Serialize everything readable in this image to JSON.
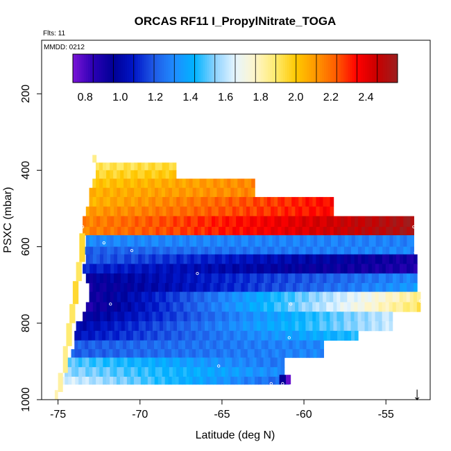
{
  "chart_data": {
    "type": "heatmap",
    "title": "ORCAS RF11 I_PropylNitrate_TOGA",
    "flights_label": "Flts: 11",
    "date_label": "MMDD: 0212",
    "xlabel": "Latitude (deg N)",
    "ylabel": "PSXC (mbar)",
    "xlim": [
      -76.0,
      -52.3
    ],
    "ylim": [
      1000,
      60
    ],
    "x_ticks": [
      -75,
      -70,
      -65,
      -60,
      -55
    ],
    "x_tick_labels": [
      "-75",
      "-70",
      "-65",
      "-60",
      "-55"
    ],
    "y_ticks": [
      200,
      400,
      600,
      800,
      1000
    ],
    "y_tick_labels": [
      "200",
      "400",
      "600",
      "800",
      "1000"
    ],
    "colorbar": {
      "min": 0.73,
      "max": 2.58,
      "ticks": [
        0.8,
        1.0,
        1.2,
        1.4,
        1.6,
        1.8,
        2.0,
        2.2,
        2.4
      ],
      "tick_labels": [
        "0.8",
        "1.0",
        "1.2",
        "1.4",
        "1.6",
        "1.8",
        "2.0",
        "2.2",
        "2.4"
      ]
    },
    "arrow_symbol": "↓",
    "arrow_latitude": -53.1,
    "bands": [
      {
        "p_top": 380,
        "p_bottom": 400,
        "lat_start": -72.7,
        "lat_end": -67.8,
        "v_start": 1.9,
        "v_end": 1.95
      },
      {
        "p_top": 400,
        "p_bottom": 422,
        "lat_start": -72.7,
        "lat_end": -67.8,
        "v_start": 1.95,
        "v_end": 2.0
      },
      {
        "p_top": 422,
        "p_bottom": 446,
        "lat_start": -72.9,
        "lat_end": -63.0,
        "v_start": 2.0,
        "v_end": 2.15
      },
      {
        "p_top": 446,
        "p_bottom": 470,
        "lat_start": -73.1,
        "lat_end": -63.0,
        "v_start": 2.05,
        "v_end": 2.15
      },
      {
        "p_top": 470,
        "p_bottom": 495,
        "lat_start": -73.1,
        "lat_end": -58.2,
        "v_start": 2.05,
        "v_end": 2.35
      },
      {
        "p_top": 495,
        "p_bottom": 520,
        "lat_start": -73.3,
        "lat_end": -58.2,
        "v_start": 2.1,
        "v_end": 2.35
      },
      {
        "p_top": 520,
        "p_bottom": 548,
        "lat_start": -73.5,
        "lat_end": -53.3,
        "v_start": 2.15,
        "v_end": 2.55
      },
      {
        "p_top": 548,
        "p_bottom": 570,
        "lat_start": -73.5,
        "lat_end": -53.3,
        "v_start": 2.15,
        "v_end": 2.55
      },
      {
        "p_top": 570,
        "p_bottom": 600,
        "lat_start": -73.3,
        "lat_end": -53.3,
        "v_start": 1.3,
        "v_end": 1.28
      },
      {
        "p_top": 600,
        "p_bottom": 620,
        "lat_start": -73.5,
        "lat_end": -53.3,
        "v_start": 1.2,
        "v_end": 1.3
      },
      {
        "p_top": 620,
        "p_bottom": 645,
        "lat_start": -73.3,
        "lat_end": -53.1,
        "v_start": 1.2,
        "v_end": 0.9
      },
      {
        "p_top": 645,
        "p_bottom": 670,
        "lat_start": -73.5,
        "lat_end": -53.1,
        "v_start": 1.1,
        "v_end": 0.88
      },
      {
        "p_top": 670,
        "p_bottom": 695,
        "lat_start": -73.3,
        "lat_end": -53.1,
        "v_start": 0.95,
        "v_end": 1.3
      },
      {
        "p_top": 695,
        "p_bottom": 718,
        "lat_start": -73.1,
        "lat_end": -53.1,
        "v_start": 0.92,
        "v_end": 1.35
      },
      {
        "p_top": 718,
        "p_bottom": 745,
        "lat_start": -73.1,
        "lat_end": -52.9,
        "v_start": 0.9,
        "v_end": 1.85
      },
      {
        "p_top": 745,
        "p_bottom": 770,
        "lat_start": -73.3,
        "lat_end": -52.9,
        "v_start": 0.88,
        "v_end": 1.9
      },
      {
        "p_top": 770,
        "p_bottom": 795,
        "lat_start": -73.5,
        "lat_end": -54.6,
        "v_start": 0.95,
        "v_end": 1.62
      },
      {
        "p_top": 795,
        "p_bottom": 820,
        "lat_start": -73.9,
        "lat_end": -54.6,
        "v_start": 1.0,
        "v_end": 1.62
      },
      {
        "p_top": 820,
        "p_bottom": 845,
        "lat_start": -74.0,
        "lat_end": -56.7,
        "v_start": 1.05,
        "v_end": 1.45
      },
      {
        "p_top": 845,
        "p_bottom": 868,
        "lat_start": -74.0,
        "lat_end": -58.8,
        "v_start": 1.2,
        "v_end": 1.3
      },
      {
        "p_top": 868,
        "p_bottom": 890,
        "lat_start": -74.2,
        "lat_end": -58.8,
        "v_start": 1.2,
        "v_end": 1.3
      },
      {
        "p_top": 890,
        "p_bottom": 915,
        "lat_start": -74.6,
        "lat_end": -61.2,
        "v_start": 1.5,
        "v_end": 1.25
      },
      {
        "p_top": 915,
        "p_bottom": 940,
        "lat_start": -74.6,
        "lat_end": -61.2,
        "v_start": 1.55,
        "v_end": 1.3
      },
      {
        "p_top": 940,
        "p_bottom": 960,
        "lat_start": -74.8,
        "lat_end": -60.9,
        "v_start": 1.65,
        "v_end": 1.2
      }
    ],
    "edge_strips": [
      {
        "p_top": 360,
        "p_bottom": 380,
        "lat_start": -72.9,
        "lat_end": -72.65,
        "value": 1.85
      },
      {
        "p_top": 565,
        "p_bottom": 640,
        "lat_start": -73.7,
        "lat_end": -73.35,
        "value": 1.95
      },
      {
        "p_top": 640,
        "p_bottom": 690,
        "lat_start": -73.9,
        "lat_end": -73.55,
        "value": 1.9
      },
      {
        "p_top": 690,
        "p_bottom": 750,
        "lat_start": -74.1,
        "lat_end": -73.75,
        "value": 1.95
      },
      {
        "p_top": 750,
        "p_bottom": 800,
        "lat_start": -74.3,
        "lat_end": -73.95,
        "value": 1.9
      },
      {
        "p_top": 800,
        "p_bottom": 860,
        "lat_start": -74.5,
        "lat_end": -74.15,
        "value": 1.88
      },
      {
        "p_top": 860,
        "p_bottom": 930,
        "lat_start": -74.7,
        "lat_end": -74.4,
        "value": 1.85
      },
      {
        "p_top": 930,
        "p_bottom": 980,
        "lat_start": -75.0,
        "lat_end": -74.7,
        "value": 1.82
      },
      {
        "p_top": 975,
        "p_bottom": 1000,
        "lat_start": -75.2,
        "lat_end": -75.0,
        "value": 1.8
      },
      {
        "p_top": 935,
        "p_bottom": 960,
        "lat_start": -61.1,
        "lat_end": -60.8,
        "value": 0.76
      },
      {
        "p_top": 935,
        "p_bottom": 960,
        "lat_start": -61.5,
        "lat_end": -61.1,
        "value": 0.95
      }
    ],
    "points": [
      {
        "lat": -73.5,
        "p": 548
      },
      {
        "lat": -53.3,
        "p": 548
      },
      {
        "lat": -72.2,
        "p": 590
      },
      {
        "lat": -70.5,
        "p": 610
      },
      {
        "lat": -53.2,
        "p": 615
      },
      {
        "lat": -66.5,
        "p": 670
      },
      {
        "lat": -71.8,
        "p": 750
      },
      {
        "lat": -60.8,
        "p": 750
      },
      {
        "lat": -52.9,
        "p": 742
      },
      {
        "lat": -60.9,
        "p": 838
      },
      {
        "lat": -65.2,
        "p": 912
      },
      {
        "lat": -62.0,
        "p": 958
      },
      {
        "lat": -61.3,
        "p": 958
      }
    ]
  },
  "colors": {
    "background": "#ffffff",
    "frame": "#000000",
    "point_marker": "#ffffff",
    "palette": [
      "#7a14d6",
      "#2a00b4",
      "#000096",
      "#0016c8",
      "#1f5ae6",
      "#1f8cff",
      "#00b4ff",
      "#8cd2ff",
      "#e6f5ff",
      "#fff5c8",
      "#ffeb6e",
      "#ffc800",
      "#ff9600",
      "#ff5a00",
      "#ff0000",
      "#c80000",
      "#9b1f1f"
    ]
  }
}
